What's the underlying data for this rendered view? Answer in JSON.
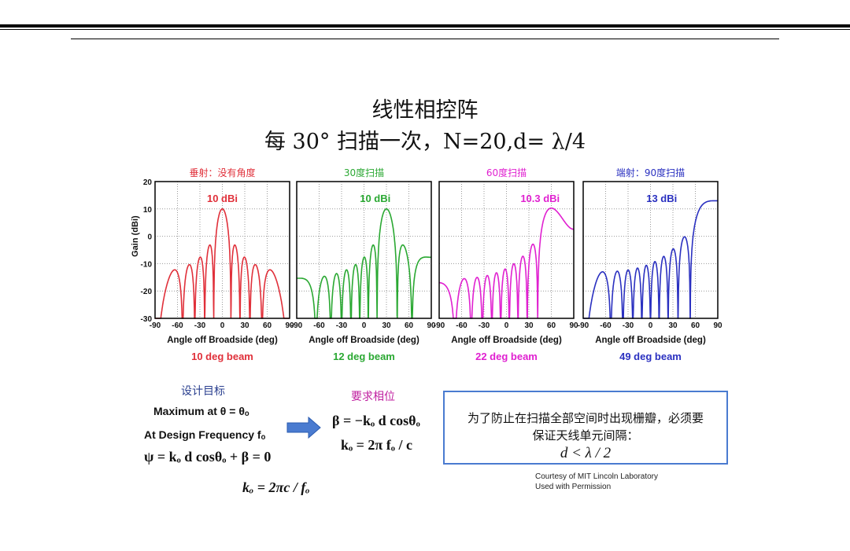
{
  "title": "线性相控阵",
  "subtitle": "每 30° 扫描一次，N=20,d= λ/4",
  "chart_data": [
    {
      "type": "line",
      "title": "垂射：没有角度",
      "color": "#e0303a",
      "peak_label": "10 dBi",
      "beam_label": "10 deg beam",
      "scan_deg": 0,
      "peak_gain_dbi": 10
    },
    {
      "type": "line",
      "title": "30度扫描",
      "color": "#2aa832",
      "peak_label": "10 dBi",
      "beam_label": "12 deg beam",
      "scan_deg": 30,
      "peak_gain_dbi": 10
    },
    {
      "type": "line",
      "title": "60度扫描",
      "color": "#e020d0",
      "peak_label": "10.3 dBi",
      "beam_label": "22 deg beam",
      "scan_deg": 60,
      "peak_gain_dbi": 10.3
    },
    {
      "type": "line",
      "title": "端射：90度扫描",
      "color": "#2a30c0",
      "peak_label": "13 dBi",
      "beam_label": "49 deg beam",
      "scan_deg": 90,
      "peak_gain_dbi": 13
    }
  ],
  "axes": {
    "xlabel": "Angle off Broadside (deg)",
    "ylabel": "Gain (dBi)",
    "xlim": [
      -90,
      90
    ],
    "ylim": [
      -30,
      20
    ],
    "xticks": [
      "-90",
      "-60",
      "-30",
      "0",
      "30",
      "60",
      "90"
    ],
    "yticks": [
      "20",
      "10",
      "0",
      "-10",
      "-20",
      "-30"
    ],
    "grid": true,
    "N": 20,
    "d_over_lambda": 0.25
  },
  "design": {
    "goal_label": "设计目标",
    "line1": "Maximum at θ = θₒ",
    "line2": "At Design Frequency fₒ",
    "line3": "ψ = kₒ d cosθₒ + β = 0",
    "line4": "kₒ = 2πc / fₒ"
  },
  "phase": {
    "label": "要求相位",
    "line1": "β = −kₒ d cosθₒ",
    "line2": "kₒ = 2π fₒ / c"
  },
  "note": {
    "line1": "为了防止在扫描全部空间时出现栅瓣，必须要",
    "line2": "保证天线单元间隔：",
    "line3": "d < λ / 2"
  },
  "credit": {
    "line1": "Courtesy of MIT Lincoln Laboratory",
    "line2": "Used with Permission"
  },
  "colors": {
    "arrow": "#4a7bd0",
    "box_border": "#4a7bd0"
  }
}
